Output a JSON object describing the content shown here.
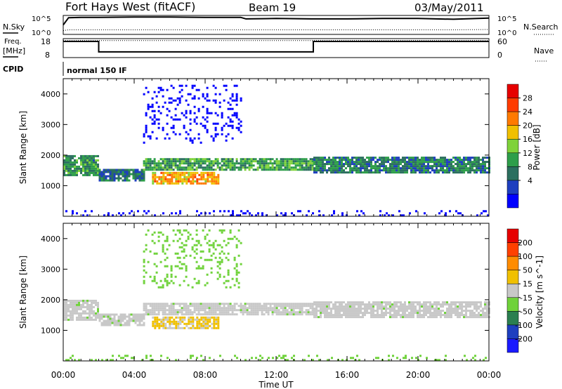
{
  "header": {
    "title": "Fort Hays West (fitACF)",
    "beam": "Beam 19",
    "date": "03/May/2011"
  },
  "top_panels": {
    "nsky": {
      "label": "N.Sky",
      "ticks": [
        "10^5",
        "10^0"
      ]
    },
    "nsearch": {
      "label": "N.Search",
      "ticks": [
        "10^5",
        "10^0"
      ]
    },
    "freq": {
      "label_line1": "Freq.",
      "label_line2": "[MHz]",
      "ticks": [
        "18",
        "8"
      ]
    },
    "nave": {
      "label": "Nave",
      "ticks": [
        "60",
        "0"
      ]
    },
    "cpid": {
      "label": "CPID",
      "value": "normal 150 IF"
    }
  },
  "power_panel": {
    "ylabel": "Slant Range [km]",
    "yticks": [
      "4000",
      "3000",
      "2000",
      "1000"
    ],
    "colorbar_label": "Power [dB]",
    "colorbar_ticks": [
      "28",
      "24",
      "20",
      "16",
      "12",
      "8",
      "4"
    ],
    "colors": [
      "#0000ff",
      "#1e3fbf",
      "#2b6f5f",
      "#2e9e4a",
      "#7fd23a",
      "#f0c000",
      "#ff7a00",
      "#ff3b00",
      "#e60000"
    ]
  },
  "velocity_panel": {
    "ylabel": "Slant Range [km]",
    "yticks": [
      "4000",
      "3000",
      "2000",
      "1000"
    ],
    "colorbar_label": "Velocity [m s^-1]",
    "colorbar_ticks": [
      "200",
      "100",
      "50",
      "15",
      "-15",
      "-50",
      "-100",
      "-200"
    ],
    "colors": [
      "#1a1aff",
      "#1e3fbf",
      "#2b7f50",
      "#6fd23a",
      "#c8c8c8",
      "#f0c000",
      "#ff8c00",
      "#ff4000",
      "#e60000"
    ]
  },
  "x_axis": {
    "label": "Time UT",
    "ticks": [
      "00:00",
      "04:00",
      "08:00",
      "12:00",
      "16:00",
      "20:00",
      "00:00"
    ]
  },
  "chart_data": [
    {
      "type": "line",
      "panel": "N.Sky / N.Search",
      "x_hours": [
        0,
        0.3,
        1,
        2,
        4,
        6,
        8,
        10,
        10.3,
        12,
        14,
        16,
        18,
        20,
        22,
        24
      ],
      "series": [
        {
          "name": "N.Sky",
          "values": [
            2.5,
            4.4,
            4.5,
            4.5,
            4.6,
            4.6,
            4.5,
            4.5,
            4.1,
            4.2,
            4.1,
            4.1,
            4.2,
            4.2,
            4.0,
            4.3
          ]
        },
        {
          "name": "N.Search",
          "values": [
            1.0,
            1.2,
            1.2,
            1.2,
            1.2,
            1.2,
            1.2,
            1.2,
            1.2,
            1.2,
            1.2,
            1.2,
            1.2,
            1.2,
            1.2,
            1.3
          ]
        }
      ],
      "ylim": [
        0,
        5
      ]
    },
    {
      "type": "line",
      "panel": "Freq. / Nave",
      "series": [
        {
          "name": "Freq.",
          "x_hours": [
            0,
            2,
            2,
            14.1,
            14.1,
            24
          ],
          "values": [
            16.5,
            16.5,
            11,
            11,
            16.5,
            16.5
          ],
          "ylim": [
            8,
            18
          ]
        },
        {
          "name": "Nave",
          "x_hours": [
            0,
            24
          ],
          "values": [
            54,
            54
          ],
          "ylim": [
            0,
            60
          ]
        }
      ]
    },
    {
      "type": "heatmap",
      "panel": "Power [dB]",
      "xlim_hours": [
        0,
        24
      ],
      "ylim_km": [
        0,
        4500
      ],
      "zlim_db": [
        0,
        32
      ],
      "regions": [
        {
          "x_hours": [
            0,
            2.0
          ],
          "range_km": [
            1350,
            2000
          ],
          "value_db": 12
        },
        {
          "x_hours": [
            2.0,
            4.5
          ],
          "range_km": [
            1150,
            1550
          ],
          "value_db": 9
        },
        {
          "x_hours": [
            4.5,
            14.1
          ],
          "range_km": [
            1500,
            1900
          ],
          "value_db": 13
        },
        {
          "x_hours": [
            5.0,
            8.8
          ],
          "range_km": [
            1050,
            1450
          ],
          "value_db": 22
        },
        {
          "x_hours": [
            14.1,
            24
          ],
          "range_km": [
            1400,
            1950
          ],
          "value_db": 10
        },
        {
          "x_hours": [
            4.5,
            10
          ],
          "range_km": [
            2400,
            4300
          ],
          "value_db": 5
        },
        {
          "x_hours": [
            0,
            24
          ],
          "range_km": [
            0,
            200
          ],
          "value_db": 6
        }
      ]
    },
    {
      "type": "heatmap",
      "panel": "Velocity [m s^-1]",
      "xlim_hours": [
        0,
        24
      ],
      "ylim_km": [
        0,
        4500
      ],
      "zlim_ms": [
        -250,
        250
      ],
      "regions": [
        {
          "x_hours": [
            0,
            2.0
          ],
          "range_km": [
            1350,
            2000
          ],
          "value_ms": 0
        },
        {
          "x_hours": [
            2.0,
            4.5
          ],
          "range_km": [
            1150,
            1550
          ],
          "value_ms": 0
        },
        {
          "x_hours": [
            4.5,
            14.1
          ],
          "range_km": [
            1500,
            1900
          ],
          "value_ms": 0
        },
        {
          "x_hours": [
            5.0,
            8.8
          ],
          "range_km": [
            1050,
            1450
          ],
          "value_ms": 40
        },
        {
          "x_hours": [
            14.1,
            24
          ],
          "range_km": [
            1400,
            1950
          ],
          "value_ms": 0
        },
        {
          "x_hours": [
            4.5,
            10
          ],
          "range_km": [
            2400,
            4300
          ],
          "value_ms": -20
        },
        {
          "x_hours": [
            0,
            24
          ],
          "range_km": [
            0,
            200
          ],
          "value_ms": -40
        }
      ]
    }
  ]
}
